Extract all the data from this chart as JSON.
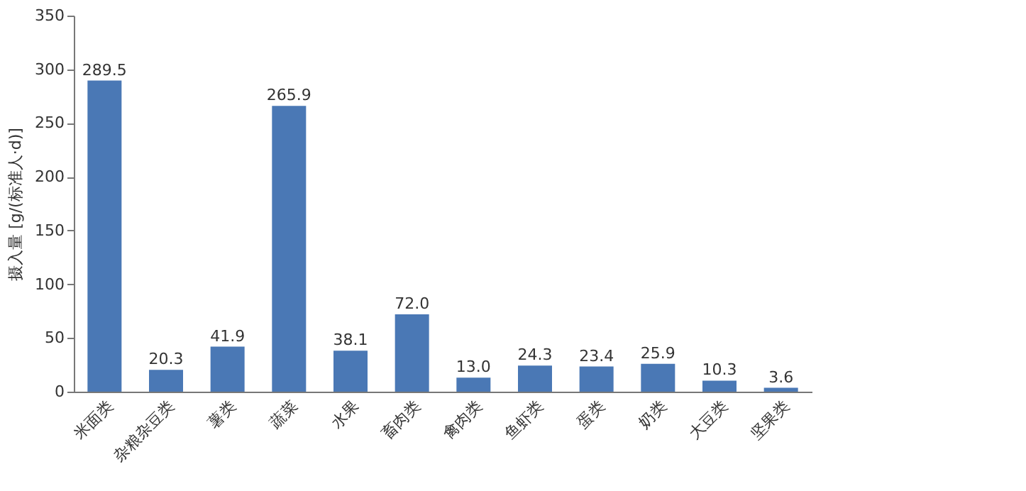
{
  "chart_data": {
    "type": "bar",
    "ylabel": "摄入量 [g/(标准人·d)]",
    "categories": [
      "米面类",
      "杂粮杂豆类",
      "薯类",
      "蔬菜",
      "水果",
      "畜肉类",
      "禽肉类",
      "鱼虾类",
      "蛋类",
      "奶类",
      "大豆类",
      "坚果类"
    ],
    "values": [
      289.5,
      20.3,
      41.9,
      265.9,
      38.1,
      72.0,
      13.0,
      24.3,
      23.4,
      25.9,
      10.3,
      3.6
    ],
    "value_labels": [
      "289.5",
      "20.3",
      "41.9",
      "265.9",
      "38.1",
      "72.0",
      "13.0",
      "24.3",
      "23.4",
      "25.9",
      "10.3",
      "3.6"
    ],
    "color": "#4a78b5",
    "ylim": [
      0,
      350
    ],
    "yticks": [
      0,
      50,
      100,
      150,
      200,
      250,
      300,
      350
    ],
    "grid": false
  }
}
